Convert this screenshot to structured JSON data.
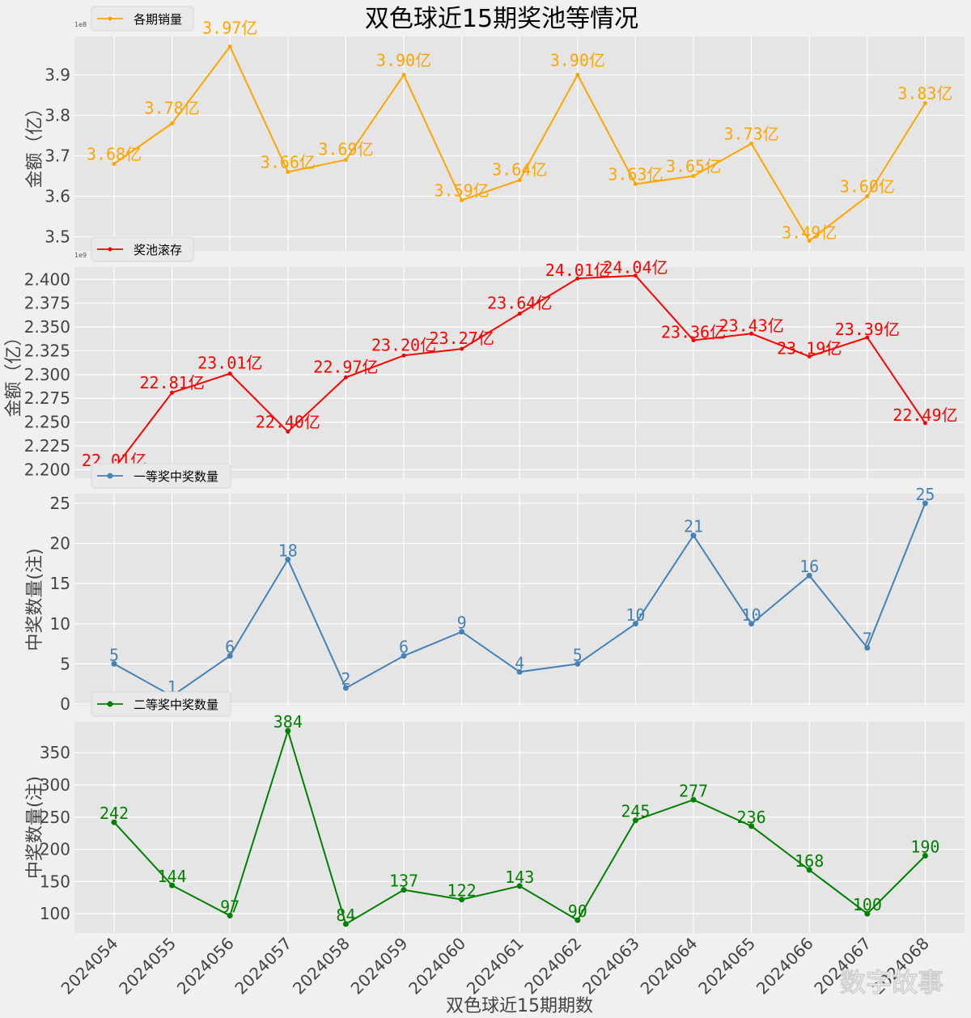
{
  "title": "双色球近15期奖池等情况",
  "xlabel": "双色球近15期期数",
  "watermark": "数字故事",
  "chart_data": [
    {
      "type": "line",
      "legend": "各期销量",
      "color": "#FFA500",
      "ylabel": "金额（亿）",
      "exponent": "1e8",
      "categories": [
        "2024054",
        "2024055",
        "2024056",
        "2024057",
        "2024058",
        "2024059",
        "2024060",
        "2024061",
        "2024062",
        "2024063",
        "2024064",
        "2024065",
        "2024066",
        "2024067",
        "2024068"
      ],
      "values": [
        3.68,
        3.78,
        3.97,
        3.66,
        3.69,
        3.9,
        3.59,
        3.64,
        3.9,
        3.63,
        3.65,
        3.73,
        3.49,
        3.6,
        3.83
      ],
      "labels": [
        "3.68亿",
        "3.78亿",
        "3.97亿",
        "3.66亿",
        "3.69亿",
        "3.90亿",
        "3.59亿",
        "3.64亿",
        "3.90亿",
        "3.63亿",
        "3.65亿",
        "3.73亿",
        "3.49亿",
        "3.60亿",
        "3.83亿"
      ],
      "yticks": [
        "3.5",
        "3.6",
        "3.7",
        "3.8",
        "3.9"
      ],
      "ytick_values": [
        3.5,
        3.6,
        3.7,
        3.8,
        3.9
      ],
      "ylim": [
        3.465,
        3.995
      ],
      "marker_size": 2.5
    },
    {
      "type": "line",
      "legend": "奖池滚存",
      "color": "#FF0000",
      "ylabel": "金额（亿）",
      "exponent": "1e9",
      "categories": [
        "2024054",
        "2024055",
        "2024056",
        "2024057",
        "2024058",
        "2024059",
        "2024060",
        "2024061",
        "2024062",
        "2024063",
        "2024064",
        "2024065",
        "2024066",
        "2024067",
        "2024068"
      ],
      "values": [
        22.01,
        22.81,
        23.01,
        22.4,
        22.97,
        23.2,
        23.27,
        23.64,
        24.01,
        24.04,
        23.36,
        23.43,
        23.19,
        23.39,
        22.49
      ],
      "labels": [
        "22.01亿",
        "22.81亿",
        "23.01亿",
        "22.40亿",
        "22.97亿",
        "23.20亿",
        "23.27亿",
        "23.64亿",
        "24.01亿",
        "24.04亿",
        "23.36亿",
        "23.43亿",
        "23.19亿",
        "23.39亿",
        "22.49亿"
      ],
      "yticks": [
        "2.200",
        "2.225",
        "2.250",
        "2.275",
        "2.300",
        "2.325",
        "2.350",
        "2.375",
        "2.400"
      ],
      "ytick_values": [
        22.0,
        22.25,
        22.5,
        22.75,
        23.0,
        23.25,
        23.5,
        23.75,
        24.0
      ],
      "ylim": [
        21.91,
        24.13
      ],
      "marker_size": 2.5
    },
    {
      "type": "line",
      "legend": "一等奖中奖数量",
      "color": "#4682B4",
      "ylabel": "中奖数量(注)",
      "exponent": "",
      "categories": [
        "2024054",
        "2024055",
        "2024056",
        "2024057",
        "2024058",
        "2024059",
        "2024060",
        "2024061",
        "2024062",
        "2024063",
        "2024064",
        "2024065",
        "2024066",
        "2024067",
        "2024068"
      ],
      "values": [
        5,
        1,
        6,
        18,
        2,
        6,
        9,
        4,
        5,
        10,
        21,
        10,
        16,
        7,
        25
      ],
      "labels": [
        "5",
        "1",
        "6",
        "18",
        "2",
        "6",
        "9",
        "4",
        "5",
        "10",
        "21",
        "10",
        "16",
        "7",
        "25"
      ],
      "yticks": [
        "0",
        "5",
        "10",
        "15",
        "20",
        "25"
      ],
      "ytick_values": [
        0,
        5,
        10,
        15,
        20,
        25
      ],
      "ylim": [
        -0.2,
        26.2
      ],
      "marker_size": 3.5
    },
    {
      "type": "line",
      "legend": "二等奖中奖数量",
      "color": "#008000",
      "ylabel": "中奖数量(注)",
      "exponent": "",
      "categories": [
        "2024054",
        "2024055",
        "2024056",
        "2024057",
        "2024058",
        "2024059",
        "2024060",
        "2024061",
        "2024062",
        "2024063",
        "2024064",
        "2024065",
        "2024066",
        "2024067",
        "2024068"
      ],
      "values": [
        242,
        144,
        97,
        384,
        84,
        137,
        122,
        143,
        90,
        245,
        277,
        236,
        168,
        100,
        190
      ],
      "labels": [
        "242",
        "144",
        "97",
        "384",
        "84",
        "137",
        "122",
        "143",
        "90",
        "245",
        "277",
        "236",
        "168",
        "100",
        "190"
      ],
      "yticks": [
        "100",
        "150",
        "200",
        "250",
        "300",
        "350"
      ],
      "ytick_values": [
        100,
        150,
        200,
        250,
        300,
        350
      ],
      "ylim": [
        70,
        398
      ],
      "marker_size": 3.5
    }
  ]
}
